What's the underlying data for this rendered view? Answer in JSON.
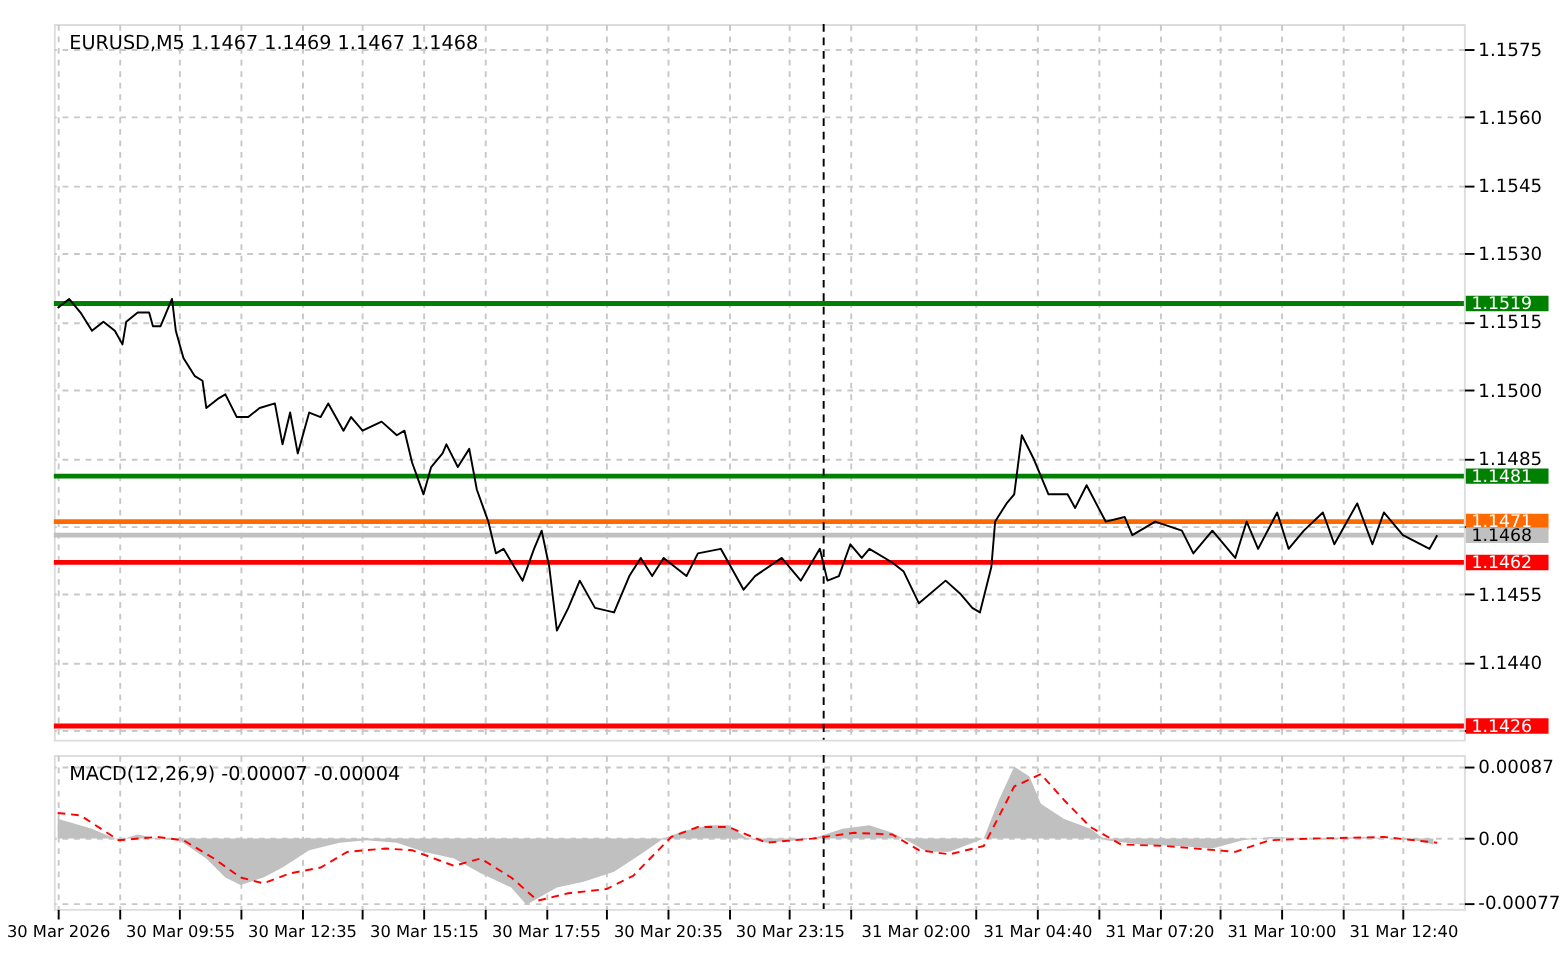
{
  "chart_data": [
    {
      "type": "line",
      "title": "EURUSD,M5  1.1467 1.1469 1.1467 1.1468",
      "xlim": [
        "2026-03-30T07:10",
        "2026-03-31T14:00"
      ],
      "ylim": [
        1.1423,
        1.15805
      ],
      "xticks": [
        "2026-03-30T07:15",
        "2026-03-30T08:35",
        "2026-03-30T09:55",
        "2026-03-30T11:15",
        "2026-03-30T12:35",
        "2026-03-30T13:55",
        "2026-03-30T15:15",
        "2026-03-30T16:35",
        "2026-03-30T17:55",
        "2026-03-30T19:15",
        "2026-03-30T20:35",
        "2026-03-30T21:55",
        "2026-03-30T23:15",
        "2026-03-31T00:35",
        "2026-03-31T02:00",
        "2026-03-31T03:20",
        "2026-03-31T04:40",
        "2026-03-31T06:00",
        "2026-03-31T07:20",
        "2026-03-31T08:40",
        "2026-03-31T10:00",
        "2026-03-31T11:20",
        "2026-03-31T12:40"
      ],
      "yticks": [
        1.1575,
        {
          "value": 1.156,
          "label": "1.1560"
        },
        1.1545,
        {
          "value": 1.153,
          "label": "1.1530"
        },
        1.1515,
        {
          "value": 1.15,
          "label": "1.1500"
        },
        1.1485,
        {
          "value": 1.147,
          "label": null
        },
        1.1455,
        {
          "value": 1.144,
          "label": "1.1440"
        },
        {
          "value": 1.1425,
          "label": null
        }
      ],
      "grid": true,
      "tick_labels": "y",
      "series": [
        {
          "color": "#000000",
          "x": [
            "2026-03-30T07:15",
            "2026-03-30T07:30",
            "2026-03-30T07:45",
            "2026-03-30T08:00",
            "2026-03-30T08:15",
            "2026-03-30T08:30",
            "2026-03-30T08:40",
            "2026-03-30T08:45",
            "2026-03-30T09:00",
            "2026-03-30T09:15",
            "2026-03-30T09:20",
            "2026-03-30T09:30",
            "2026-03-30T09:45",
            "2026-03-30T09:50",
            "2026-03-30T10:00",
            "2026-03-30T10:15",
            "2026-03-30T10:25",
            "2026-03-30T10:30",
            "2026-03-30T10:45",
            "2026-03-30T10:55",
            "2026-03-30T11:10",
            "2026-03-30T11:25",
            "2026-03-30T11:40",
            "2026-03-30T12:00",
            "2026-03-30T12:10",
            "2026-03-30T12:20",
            "2026-03-30T12:30",
            "2026-03-30T12:45",
            "2026-03-30T13:00",
            "2026-03-30T13:10",
            "2026-03-30T13:30",
            "2026-03-30T13:40",
            "2026-03-30T13:55",
            "2026-03-30T14:20",
            "2026-03-30T14:40",
            "2026-03-30T14:50",
            "2026-03-30T15:00",
            "2026-03-30T15:15",
            "2026-03-30T15:25",
            "2026-03-30T15:40",
            "2026-03-30T15:45",
            "2026-03-30T16:00",
            "2026-03-30T16:15",
            "2026-03-30T16:25",
            "2026-03-30T16:40",
            "2026-03-30T16:50",
            "2026-03-30T17:00",
            "2026-03-30T17:25",
            "2026-03-30T17:40",
            "2026-03-30T17:50",
            "2026-03-30T18:00",
            "2026-03-30T18:10",
            "2026-03-30T18:25",
            "2026-03-30T18:40",
            "2026-03-30T19:00",
            "2026-03-30T19:25",
            "2026-03-30T19:45",
            "2026-03-30T20:00",
            "2026-03-30T20:15",
            "2026-03-30T20:30",
            "2026-03-30T21:00",
            "2026-03-30T21:15",
            "2026-03-30T21:45",
            "2026-03-30T22:15",
            "2026-03-30T22:30",
            "2026-03-30T23:05",
            "2026-03-30T23:30",
            "2026-03-30T23:55",
            "2026-03-31T00:05",
            "2026-03-31T00:20",
            "2026-03-31T00:35",
            "2026-03-31T00:50",
            "2026-03-31T01:00",
            "2026-03-31T01:30",
            "2026-03-31T01:45",
            "2026-03-31T02:05",
            "2026-03-31T02:40",
            "2026-03-31T03:00",
            "2026-03-31T03:15",
            "2026-03-31T03:25",
            "2026-03-31T03:40",
            "2026-03-31T03:45",
            "2026-03-31T04:00",
            "2026-03-31T04:10",
            "2026-03-31T04:20",
            "2026-03-31T04:35",
            "2026-03-31T04:55",
            "2026-03-31T05:20",
            "2026-03-31T05:30",
            "2026-03-31T05:45",
            "2026-03-31T06:10",
            "2026-03-31T06:35",
            "2026-03-31T06:45",
            "2026-03-31T07:15",
            "2026-03-31T07:50",
            "2026-03-31T08:05",
            "2026-03-31T08:30",
            "2026-03-31T09:00",
            "2026-03-31T09:15",
            "2026-03-31T09:30",
            "2026-03-31T09:55",
            "2026-03-31T10:10",
            "2026-03-31T10:30",
            "2026-03-31T10:55",
            "2026-03-31T11:10",
            "2026-03-31T11:40",
            "2026-03-31T12:00",
            "2026-03-31T12:15",
            "2026-03-31T12:40",
            "2026-03-31T13:15",
            "2026-03-31T13:25"
          ],
          "values": [
            1.1518,
            1.152,
            1.1517,
            1.1513,
            1.1515,
            1.1513,
            1.151,
            1.1515,
            1.1517,
            1.1517,
            1.1514,
            1.1514,
            1.152,
            1.1513,
            1.1507,
            1.1503,
            1.1502,
            1.1496,
            1.1498,
            1.1499,
            1.1494,
            1.1494,
            1.1496,
            1.1497,
            1.1488,
            1.1495,
            1.1486,
            1.1495,
            1.1494,
            1.1497,
            1.1491,
            1.1494,
            1.1491,
            1.1493,
            1.149,
            1.1491,
            1.1484,
            1.1477,
            1.1483,
            1.1486,
            1.1488,
            1.1483,
            1.1487,
            1.1478,
            1.1471,
            1.1464,
            1.1465,
            1.1458,
            1.1465,
            1.1469,
            1.1461,
            1.1447,
            1.1452,
            1.1458,
            1.1452,
            1.1451,
            1.1459,
            1.1463,
            1.1459,
            1.1463,
            1.1459,
            1.1464,
            1.1465,
            1.1456,
            1.1459,
            1.1463,
            1.1458,
            1.1465,
            1.1458,
            1.1459,
            1.1466,
            1.1463,
            1.1465,
            1.1462,
            1.146,
            1.1453,
            1.1458,
            1.1455,
            1.1452,
            1.1451,
            1.1461,
            1.1471,
            1.1475,
            1.1477,
            1.149,
            1.1485,
            1.1477,
            1.1477,
            1.1474,
            1.1479,
            1.1471,
            1.1472,
            1.1468,
            1.1471,
            1.1469,
            1.1464,
            1.1469,
            1.1463,
            1.1471,
            1.1465,
            1.1473,
            1.1465,
            1.1469,
            1.1473,
            1.1466,
            1.1475,
            1.1466,
            1.1473,
            1.1468,
            1.1465,
            1.1468
          ]
        }
      ],
      "ref_lines": [
        {
          "axis": "y",
          "value": 1.1519,
          "label": "1.1519",
          "color": "#008000"
        },
        {
          "axis": "y",
          "value": 1.1481,
          "label": "1.1481",
          "color": "#008000"
        },
        {
          "axis": "y",
          "value": 1.1471,
          "label": "1.1471",
          "color": "#ff6a00"
        },
        {
          "axis": "y",
          "value": 1.1468,
          "label": "1.1468",
          "color": "#c0c0c0"
        },
        {
          "axis": "y",
          "value": 1.1462,
          "label": "1.1462",
          "color": "#ff0000"
        },
        {
          "axis": "y",
          "value": 1.1426,
          "label": "1.1426",
          "color": "#ff0000"
        },
        {
          "axis": "x",
          "value": "2026-03-31T00:00",
          "color": "#000000",
          "line_style": "dashed"
        }
      ]
    },
    {
      "type": "line",
      "annotations": [
        "MACD(12,26,9) -0.00007 -0.00004"
      ],
      "xlim": [
        "2026-03-30T07:10",
        "2026-03-31T14:00"
      ],
      "ylim": [
        -0.00085,
        0.00101
      ],
      "xticks": [
        {
          "value": "2026-03-30T07:15",
          "label": "30 Mar 2026"
        },
        {
          "value": "2026-03-30T08:35",
          "label": null
        },
        {
          "value": "2026-03-30T09:55",
          "label": "30 Mar 09:55"
        },
        {
          "value": "2026-03-30T11:15",
          "label": null
        },
        {
          "value": "2026-03-30T12:35",
          "label": "30 Mar 12:35"
        },
        {
          "value": "2026-03-30T13:55",
          "label": null
        },
        {
          "value": "2026-03-30T15:15",
          "label": "30 Mar 15:15"
        },
        {
          "value": "2026-03-30T16:35",
          "label": null
        },
        {
          "value": "2026-03-30T17:55",
          "label": "30 Mar 17:55"
        },
        {
          "value": "2026-03-30T19:15",
          "label": null
        },
        {
          "value": "2026-03-30T20:35",
          "label": "30 Mar 20:35"
        },
        {
          "value": "2026-03-30T21:55",
          "label": null
        },
        {
          "value": "2026-03-30T23:15",
          "label": "30 Mar 23:15"
        },
        {
          "value": "2026-03-31T00:35",
          "label": null
        },
        {
          "value": "2026-03-31T02:00",
          "label": "31 Mar 02:00"
        },
        {
          "value": "2026-03-31T03:20",
          "label": null
        },
        {
          "value": "2026-03-31T04:40",
          "label": "31 Mar 04:40"
        },
        {
          "value": "2026-03-31T06:00",
          "label": null
        },
        {
          "value": "2026-03-31T07:20",
          "label": "31 Mar 07:20"
        },
        {
          "value": "2026-03-31T08:40",
          "label": null
        },
        {
          "value": "2026-03-31T10:00",
          "label": "31 Mar 10:00"
        },
        {
          "value": "2026-03-31T11:20",
          "label": null
        },
        {
          "value": "2026-03-31T12:40",
          "label": "31 Mar 12:40"
        }
      ],
      "yticks": [
        {
          "value": 0.00087,
          "label": "0.00087"
        },
        {
          "value": 0,
          "label": "0.00"
        },
        {
          "value": -0.00077,
          "label": "-0.00077"
        }
      ],
      "grid": true,
      "series": [
        {
          "type": "area",
          "color": "#c0c0c0",
          "x": [
            "2026-03-30T07:15",
            "2026-03-30T08:00",
            "2026-03-30T08:35",
            "2026-03-30T09:00",
            "2026-03-30T09:25",
            "2026-03-30T09:55",
            "2026-03-30T10:30",
            "2026-03-30T10:55",
            "2026-03-30T11:15",
            "2026-03-30T11:45",
            "2026-03-30T12:10",
            "2026-03-30T12:45",
            "2026-03-30T13:25",
            "2026-03-30T14:00",
            "2026-03-30T14:40",
            "2026-03-30T15:15",
            "2026-03-30T15:55",
            "2026-03-30T16:30",
            "2026-03-30T17:10",
            "2026-03-30T17:30",
            "2026-03-30T18:10",
            "2026-03-30T18:45",
            "2026-03-30T19:25",
            "2026-03-30T20:00",
            "2026-03-30T20:30",
            "2026-03-30T20:55",
            "2026-03-30T21:30",
            "2026-03-30T21:55",
            "2026-03-30T22:20",
            "2026-03-30T22:45",
            "2026-03-30T23:25",
            "2026-03-30T23:45",
            "2026-03-31T00:25",
            "2026-03-31T01:00",
            "2026-03-31T01:30",
            "2026-03-31T01:55",
            "2026-03-31T02:15",
            "2026-03-31T02:45",
            "2026-03-31T03:10",
            "2026-03-31T03:30",
            "2026-03-31T03:50",
            "2026-03-31T04:10",
            "2026-03-31T04:30",
            "2026-03-31T04:45",
            "2026-03-31T05:15",
            "2026-03-31T05:50",
            "2026-03-31T06:10",
            "2026-03-31T06:55",
            "2026-03-31T07:45",
            "2026-03-31T08:30",
            "2026-03-31T09:10",
            "2026-03-31T09:45",
            "2026-03-31T10:40",
            "2026-03-31T11:55",
            "2026-03-31T12:55",
            "2026-03-31T13:20"
          ],
          "values": [
            0.00024,
            0.00012,
            -2e-05,
            5e-05,
            0,
            -2e-05,
            -0.00024,
            -0.00047,
            -0.00056,
            -0.00047,
            -0.00035,
            -0.00014,
            -5e-05,
            -2e-05,
            -5e-05,
            -0.00016,
            -0.00024,
            -0.00042,
            -0.00059,
            -0.0008,
            -0.00059,
            -0.00052,
            -0.0004,
            -0.00019,
            0,
            9e-05,
            0.00016,
            0.00016,
            0,
            -5e-05,
            -2e-05,
            0,
            0.00012,
            0.00016,
            7e-05,
            -5e-05,
            -0.00016,
            -0.00016,
            -7e-05,
            0,
            0.00047,
            0.00087,
            0.00075,
            0.00042,
            0.00024,
            0.00012,
            -2e-05,
            -7e-05,
            -9e-05,
            -0.00012,
            -2e-05,
            2e-05,
            0,
            2e-05,
            -2e-05,
            -7e-05
          ]
        },
        {
          "type": "line",
          "color": "#ff0000",
          "line_style": "dashed",
          "x": [
            "2026-03-30T07:15",
            "2026-03-30T07:45",
            "2026-03-30T08:35",
            "2026-03-30T09:25",
            "2026-03-30T10:00",
            "2026-03-30T10:40",
            "2026-03-30T11:15",
            "2026-03-30T11:45",
            "2026-03-30T12:20",
            "2026-03-30T13:00",
            "2026-03-30T13:35",
            "2026-03-30T14:25",
            "2026-03-30T15:00",
            "2026-03-30T15:55",
            "2026-03-30T16:30",
            "2026-03-30T17:10",
            "2026-03-30T17:45",
            "2026-03-30T18:25",
            "2026-03-30T19:15",
            "2026-03-30T19:50",
            "2026-03-30T20:40",
            "2026-03-30T21:15",
            "2026-03-30T21:55",
            "2026-03-30T22:45",
            "2026-03-30T23:45",
            "2026-03-31T00:40",
            "2026-03-31T01:30",
            "2026-03-31T02:05",
            "2026-03-31T02:45",
            "2026-03-31T03:30",
            "2026-03-31T04:10",
            "2026-03-31T04:45",
            "2026-03-31T05:15",
            "2026-03-31T05:50",
            "2026-03-31T06:30",
            "2026-03-31T07:30",
            "2026-03-31T09:00",
            "2026-03-31T09:45",
            "2026-03-31T10:40",
            "2026-03-31T12:15",
            "2026-03-31T13:25"
          ],
          "values": [
            0.00031,
            0.00028,
            -2e-05,
            2e-05,
            -2e-05,
            -0.00024,
            -0.00047,
            -0.00054,
            -0.00042,
            -0.00035,
            -0.00016,
            -0.00012,
            -0.00014,
            -0.00033,
            -0.00024,
            -0.00047,
            -0.00075,
            -0.00066,
            -0.00061,
            -0.00045,
            2e-05,
            0.00014,
            0.00014,
            -5e-05,
            0,
            7e-05,
            5e-05,
            -0.00014,
            -0.00019,
            -9e-05,
            0.00063,
            0.00078,
            0.00047,
            0.00014,
            -7e-05,
            -9e-05,
            -0.00016,
            -2e-05,
            0,
            2e-05,
            -5e-05
          ]
        }
      ],
      "ref_lines": [
        {
          "axis": "x",
          "value": "2026-03-31T00:00",
          "color": "#000000",
          "line_style": "dashed"
        }
      ]
    }
  ]
}
